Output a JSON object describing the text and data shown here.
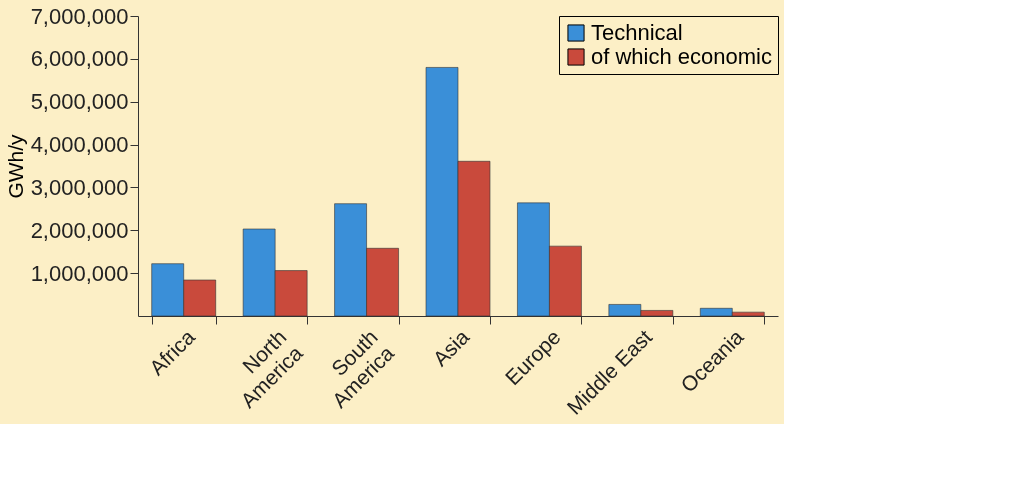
{
  "chart_data": {
    "type": "bar",
    "ylabel": "GWh/y",
    "categories": [
      "Africa",
      "North\nAmerica",
      "South\nAmerica",
      "Asia",
      "Europe",
      "Middle East",
      "Oceania"
    ],
    "series": [
      {
        "name": "Technical",
        "color": "#3a8fd8",
        "values": [
          1220000,
          2030000,
          2620000,
          5800000,
          2640000,
          270000,
          180000
        ]
      },
      {
        "name": "of which economic",
        "color": "#c94a3c",
        "values": [
          840000,
          1060000,
          1580000,
          3610000,
          1630000,
          130000,
          90000
        ]
      }
    ],
    "ylim": [
      0,
      7000000
    ],
    "yticks": [
      {
        "value": 1000000,
        "label": "1,000,000"
      },
      {
        "value": 2000000,
        "label": "2,000,000"
      },
      {
        "value": 3000000,
        "label": "3,000,000"
      },
      {
        "value": 4000000,
        "label": "4,000,000"
      },
      {
        "value": 5000000,
        "label": "5,000,000"
      },
      {
        "value": 6000000,
        "label": "6,000,000"
      },
      {
        "value": 7000000,
        "label": "7,000,000"
      }
    ],
    "grid": false,
    "legend": "top right"
  }
}
